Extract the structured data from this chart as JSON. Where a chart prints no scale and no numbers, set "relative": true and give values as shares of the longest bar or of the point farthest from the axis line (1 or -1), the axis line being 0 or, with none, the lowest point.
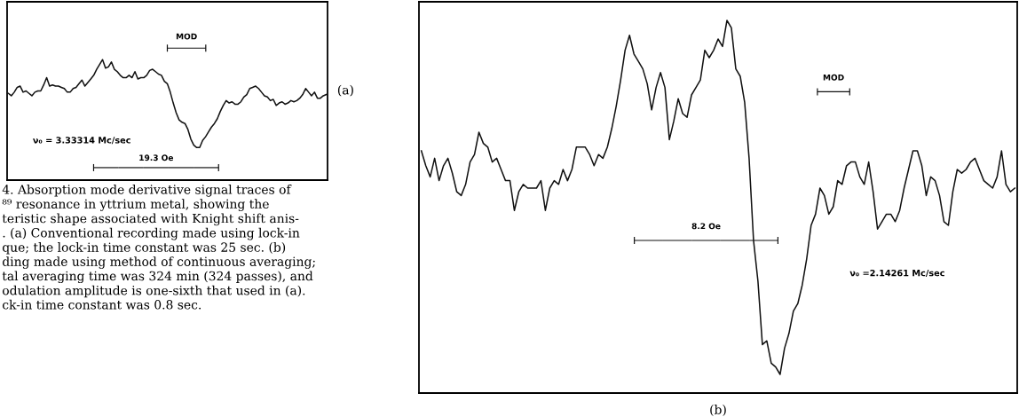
{
  "chart_data": [
    {
      "type": "line",
      "relative": true,
      "categories": [
        null,
        null,
        null,
        null,
        null,
        null,
        null,
        null,
        null,
        null,
        null,
        null,
        null,
        null,
        null,
        null,
        null,
        null,
        null,
        null,
        null,
        null,
        null,
        null,
        null,
        null,
        null,
        null,
        null,
        null,
        null,
        null,
        null,
        null,
        null,
        null,
        null,
        null,
        null,
        null,
        null,
        null,
        null,
        null,
        null,
        null,
        null,
        null,
        null,
        null,
        null,
        null,
        null,
        null,
        null,
        null,
        null,
        null,
        null,
        null,
        null,
        null,
        null,
        null,
        null,
        null,
        null,
        null,
        null,
        null,
        null,
        null,
        null,
        null,
        null,
        null,
        null,
        null,
        null,
        null,
        null,
        null,
        null,
        null,
        null,
        null,
        null,
        null,
        null,
        null,
        null,
        null,
        null,
        null,
        null,
        null,
        null,
        null,
        null,
        null,
        null,
        null,
        null,
        null,
        null,
        null,
        null,
        null,
        null
      ],
      "series": [
        {
          "color": "#111111",
          "values": [
            0.72,
            0.7,
            0.73,
            0.77,
            0.78,
            0.73,
            0.74,
            0.72,
            0.7,
            0.73,
            0.74,
            0.74,
            0.79,
            0.85,
            0.78,
            0.79,
            0.78,
            0.78,
            0.77,
            0.76,
            0.73,
            0.73,
            0.76,
            0.77,
            0.8,
            0.83,
            0.78,
            0.81,
            0.84,
            0.87,
            0.92,
            0.96,
            1.0,
            0.93,
            0.94,
            0.98,
            0.92,
            0.9,
            0.87,
            0.85,
            0.85,
            0.87,
            0.85,
            0.9,
            0.84,
            0.85,
            0.85,
            0.87,
            0.91,
            0.92,
            0.9,
            0.88,
            0.87,
            0.82,
            0.8,
            0.73,
            0.64,
            0.56,
            0.5,
            0.48,
            0.47,
            0.42,
            0.34,
            0.29,
            0.27,
            0.27,
            0.33,
            0.36,
            0.4,
            0.44,
            0.47,
            0.51,
            0.57,
            0.62,
            0.66,
            0.64,
            0.65,
            0.63,
            0.63,
            0.65,
            0.69,
            0.71,
            0.76,
            0.77,
            0.78,
            0.76,
            0.73,
            0.7,
            0.69,
            0.66,
            0.67,
            0.62,
            0.64,
            0.65,
            0.63,
            0.64,
            0.66,
            0.65,
            0.66,
            0.68,
            0.71,
            0.76,
            0.73,
            0.7,
            0.73,
            0.68,
            0.68,
            0.7,
            0.71
          ]
        }
      ],
      "annotations": [
        "MOD",
        "19.3 Oe",
        "ν₀ = 3.33314 Mc/sec",
        "(a)",
        "4. Absorption mode derivative signal traces of\n⁸⁹ resonance in yttrium metal, showing the\nteristic shape associated with Knight shift anis-\n. (a) Conventional recording made using lock-in\nque; the lock-in time constant was 25 sec. (b)\nding made using method of continuous averaging;\ntal averaging time was 324 min (324 passes), and\nodulation amplitude is one-sixth that used in (a).\nck-in time constant was 0.8 sec."
      ]
    },
    {
      "type": "line",
      "relative": true,
      "categories": [
        null,
        null,
        null,
        null,
        null,
        null,
        null,
        null,
        null,
        null,
        null,
        null,
        null,
        null,
        null,
        null,
        null,
        null,
        null,
        null,
        null,
        null,
        null,
        null,
        null,
        null,
        null,
        null,
        null,
        null,
        null,
        null,
        null,
        null,
        null,
        null,
        null,
        null,
        null,
        null,
        null,
        null,
        null,
        null,
        null,
        null,
        null,
        null,
        null,
        null,
        null,
        null,
        null,
        null,
        null,
        null,
        null,
        null,
        null,
        null,
        null,
        null,
        null,
        null,
        null,
        null,
        null,
        null,
        null,
        null,
        null,
        null,
        null,
        null,
        null,
        null,
        null,
        null,
        null,
        null,
        null,
        null,
        null,
        null,
        null,
        null,
        null,
        null,
        null,
        null,
        null,
        null,
        null,
        null,
        null,
        null,
        null,
        null,
        null,
        null,
        null,
        null,
        null,
        null,
        null,
        null,
        null,
        null,
        null,
        null,
        null,
        null,
        null,
        null,
        null,
        null,
        null,
        null,
        null,
        null,
        null,
        null,
        null,
        null,
        null,
        null,
        null,
        null,
        null,
        null,
        null,
        null,
        null,
        null,
        null
      ],
      "series": [
        {
          "color": "#111111",
          "values": [
            0.65,
            0.61,
            0.58,
            0.63,
            0.57,
            0.61,
            0.63,
            0.59,
            0.54,
            0.53,
            0.56,
            0.62,
            0.64,
            0.7,
            0.67,
            0.66,
            0.62,
            0.63,
            0.6,
            0.57,
            0.57,
            0.49,
            0.54,
            0.56,
            0.55,
            0.55,
            0.55,
            0.57,
            0.49,
            0.55,
            0.57,
            0.56,
            0.6,
            0.57,
            0.6,
            0.66,
            0.66,
            0.66,
            0.64,
            0.61,
            0.64,
            0.63,
            0.66,
            0.71,
            0.77,
            0.84,
            0.92,
            0.96,
            0.91,
            0.89,
            0.87,
            0.83,
            0.76,
            0.82,
            0.86,
            0.82,
            0.68,
            0.73,
            0.79,
            0.75,
            0.74,
            0.8,
            0.82,
            0.84,
            0.92,
            0.9,
            0.92,
            0.95,
            0.93,
            1.0,
            0.98,
            0.87,
            0.85,
            0.78,
            0.63,
            0.41,
            0.3,
            0.13,
            0.14,
            0.08,
            0.07,
            0.05,
            0.12,
            0.16,
            0.22,
            0.24,
            0.29,
            0.36,
            0.45,
            0.48,
            0.55,
            0.53,
            0.48,
            0.5,
            0.57,
            0.56,
            0.61,
            0.62,
            0.62,
            0.58,
            0.56,
            0.62,
            0.54,
            0.44,
            0.46,
            0.48,
            0.48,
            0.46,
            0.49,
            0.55,
            0.6,
            0.65,
            0.65,
            0.61,
            0.53,
            0.58,
            0.57,
            0.53,
            0.46,
            0.45,
            0.54,
            0.6,
            0.59,
            0.6,
            0.62,
            0.63,
            0.6,
            0.57,
            0.56,
            0.55,
            0.58,
            0.65,
            0.56,
            0.54,
            0.55
          ]
        }
      ],
      "annotations": [
        "MOD",
        "8.2 Oe",
        "ν₀ =2.14261 Mc/sec",
        "(b)"
      ]
    }
  ]
}
